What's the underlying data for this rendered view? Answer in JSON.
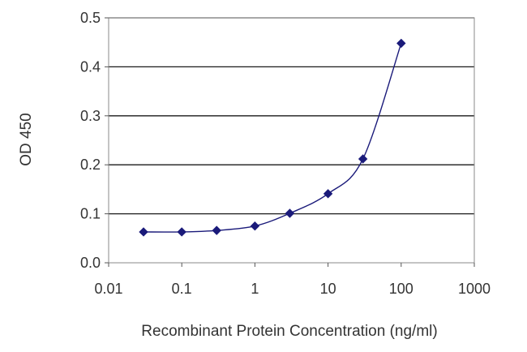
{
  "chart_data": {
    "type": "line",
    "xlabel": "Recombinant Protein Concentration (ng/ml)",
    "ylabel": "OD 450",
    "x_scale": "log",
    "xlim": [
      0.01,
      1000
    ],
    "ylim": [
      0,
      0.5
    ],
    "x_ticks": [
      0.01,
      0.1,
      1,
      10,
      100,
      1000
    ],
    "x_tick_labels": [
      "0.01",
      "0.1",
      "1",
      "10",
      "100",
      "1000"
    ],
    "y_ticks": [
      0,
      0.1,
      0.2,
      0.3,
      0.4,
      0.5
    ],
    "y_tick_labels": [
      "0.0",
      "0.1",
      "0.2",
      "0.3",
      "0.4",
      "0.5"
    ],
    "grid": "horizontal",
    "series": [
      {
        "color": "#1a1a7a",
        "marker": "diamond",
        "x": [
          0.03,
          0.1,
          0.3,
          1,
          3,
          10,
          30,
          100
        ],
        "y": [
          0.063,
          0.063,
          0.066,
          0.075,
          0.101,
          0.141,
          0.212,
          0.448
        ]
      }
    ]
  }
}
